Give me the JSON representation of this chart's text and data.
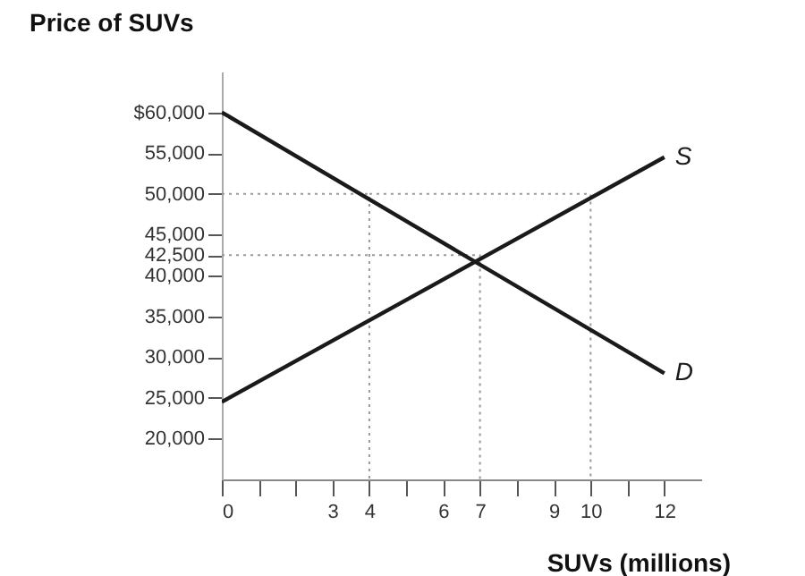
{
  "chart_data": {
    "type": "line",
    "ylabel": "Price of SUVs",
    "xlabel": "SUVs (millions)",
    "xlim": [
      0,
      13
    ],
    "ylim": [
      15000,
      65000
    ],
    "xticks": [
      0,
      {
        "value": 1,
        "label": null
      },
      {
        "value": 2,
        "label": null
      },
      3,
      4,
      {
        "value": 5,
        "label": null
      },
      6,
      7,
      {
        "value": 8,
        "label": null
      },
      9,
      10,
      {
        "value": 11,
        "label": null
      },
      12
    ],
    "yticks": [
      {
        "value": 20000,
        "label": "20,000"
      },
      {
        "value": 25000,
        "label": "25,000"
      },
      {
        "value": 30000,
        "label": "30,000"
      },
      {
        "value": 35000,
        "label": "35,000"
      },
      {
        "value": 40000,
        "label": "40,000"
      },
      {
        "value": 42500,
        "label": "42,500"
      },
      {
        "value": 45000,
        "label": "45,000"
      },
      {
        "value": 50000,
        "label": "50,000"
      },
      {
        "value": 55000,
        "label": "55,000"
      },
      {
        "value": 60000,
        "label": "$60,000"
      }
    ],
    "series": [
      {
        "type": "line",
        "x": [
          4,
          10,
          10
        ],
        "values": [
          50000,
          50000,
          15000
        ],
        "color": "#999999",
        "line_style": "dotted"
      },
      {
        "type": "line",
        "x": [
          0,
          7,
          7
        ],
        "values": [
          42500,
          42500,
          15000
        ],
        "color": "#999999",
        "line_style": "dotted"
      },
      {
        "type": "line",
        "x": [
          0,
          4,
          4
        ],
        "values": [
          50000,
          50000,
          15000
        ],
        "color": "#999999",
        "line_style": "dotted"
      },
      {
        "name": "D",
        "x": [
          0,
          12
        ],
        "values": [
          60000,
          28000
        ],
        "color": "#1a1a1a",
        "line_style": "solid"
      },
      {
        "name": "S",
        "x": [
          0,
          12
        ],
        "values": [
          24500,
          54500
        ],
        "color": "#1a1a1a",
        "line_style": "solid"
      }
    ]
  }
}
